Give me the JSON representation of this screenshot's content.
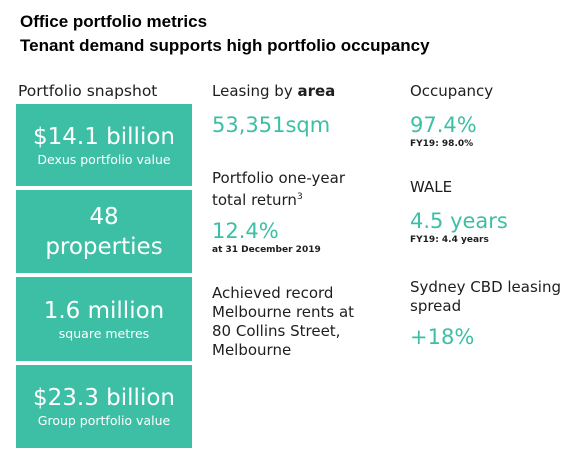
{
  "header": {
    "line1": "Office portfolio metrics",
    "line2": "Tenant demand supports high portfolio occupancy"
  },
  "snapshot": {
    "title": "Portfolio snapshot",
    "boxes": [
      {
        "big": "$14.1 billion",
        "small": "Dexus portfolio value"
      },
      {
        "big_line1": "48",
        "big_line2": "properties"
      },
      {
        "big": "1.6 million",
        "small": "square metres"
      },
      {
        "big": "$23.3 billion",
        "small": "Group portfolio value"
      }
    ]
  },
  "middle": {
    "leasing": {
      "label_prefix": "Leasing by ",
      "label_bold": "area",
      "value": "53,351sqm"
    },
    "return": {
      "label_line1": "Portfolio one-year",
      "label_line2": "total return",
      "footnote": "3",
      "value": "12.4%",
      "sub": "at 31 December 2019"
    },
    "record": {
      "lines": [
        "Achieved record",
        "Melbourne rents at",
        "80 Collins Street,",
        "Melbourne"
      ]
    }
  },
  "right": {
    "occupancy": {
      "label": "Occupancy",
      "value": "97.4%",
      "sub": "FY19: 98.0%"
    },
    "wale": {
      "label": "WALE",
      "value": "4.5 years",
      "sub": "FY19: 4.4 years"
    },
    "spread": {
      "label_line1": "Sydney CBD leasing",
      "label_line2": "spread",
      "value": "+18%"
    }
  },
  "colors": {
    "accent": "#3dbfa6",
    "text": "#1e1e1e"
  }
}
